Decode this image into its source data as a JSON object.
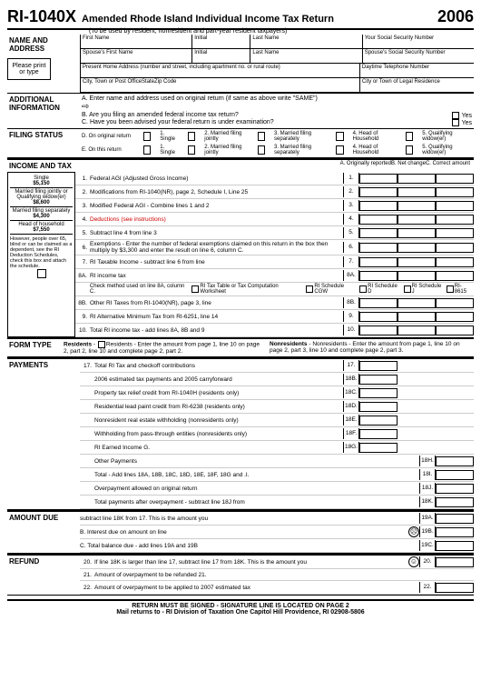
{
  "header": {
    "form_code": "RI-1040X",
    "title": "Amended Rhode Island Individual Income Tax Return",
    "year": "2006",
    "subtitle": "(To be used by resident, nonresident and part-year resident taxpayers)"
  },
  "name_address": {
    "label": "NAME AND ADDRESS",
    "please": "Please print or type",
    "first_name": "First Name",
    "initial": "Initial",
    "last_name": "Last Name",
    "ssn": "Your Social Security Number",
    "sp_first": "Spouse's First Name",
    "sp_ssn": "Spouse's Social Security Number",
    "address": "Present Home Address (number and street, including apartment no. or rural route)",
    "phone": "Daytime Telephone Number",
    "city": "City, Town or Post Office",
    "state": "State",
    "zip": "Zip Code",
    "residence": "City or Town of Legal Residence"
  },
  "additional": {
    "label": "ADDITIONAL INFORMATION",
    "a": "A. Enter name and address used on original return (if same as above write \"SAME\")",
    "b": "B. Are you filing an amended federal income tax return?",
    "c": "C. Have you been advised your federal return is under examination?",
    "yes": "Yes"
  },
  "filing": {
    "label": "FILING STATUS",
    "d": "D. On original return",
    "e": "E. On this return",
    "opts": [
      "1. Single",
      "2. Married filing jointly",
      "3. Married filing separately",
      "4. Head of Household",
      "5. Qualifying widow(er)"
    ]
  },
  "income": {
    "label": "INCOME AND TAX",
    "col_headers": "A. Originally reportedB. Net changeC. Correct amount",
    "deductions": [
      {
        "t": "Single",
        "a": "$5,150"
      },
      {
        "t": "Married filing jointly or Qualifying widow(er)",
        "a": "$8,600"
      },
      {
        "t": "Married filing separately",
        "a": "$4,300"
      },
      {
        "t": "Head of household",
        "a": "$7,550"
      }
    ],
    "ded_note": "However, people over 65, blind or can be claimed as a dependent, see the RI Deduction Schedules, check this box and attach the schedule.",
    "lines": [
      {
        "n": "1.",
        "t": "Federal AGI (Adjusted Gross Income)",
        "b": "1."
      },
      {
        "n": "2.",
        "t": "Modifications from RI-1040(NR), page 2, Schedule I, Line 25",
        "b": "2."
      },
      {
        "n": "3.",
        "t": "Modified Federal AGI - Combine lines 1 and 2",
        "b": "3."
      },
      {
        "n": "4.",
        "t": "Deductions (see instructions)",
        "b": "4.",
        "red": true
      },
      {
        "n": "5.",
        "t": "Subtract line 4 from line 3",
        "b": "5."
      },
      {
        "n": "6.",
        "t": "Exemptions - Enter the number of federal exemptions claimed on this return in the box then multiply by $3,300 and enter the result on line 6, column C.",
        "b": "6."
      },
      {
        "n": "7.",
        "t": "RI Taxable Income - subtract line 6 from line",
        "b": "7."
      },
      {
        "n": "8A.",
        "t": "RI income tax",
        "b": "8A."
      }
    ],
    "check_method": "Check method used on line 8A, column C.",
    "methods": [
      "RI Tax Table or Tax Computation Worksheet",
      "RI Schedule CGW",
      "RI Schedule D",
      "RI Schedule J",
      "RI-8615"
    ],
    "lines2": [
      {
        "n": "8B.",
        "t": "Other RI Taxes from RI-1040(NR), page 3, line",
        "b": "8B."
      },
      {
        "n": "9.",
        "t": "RI Alternative Minimum Tax from RI-6251, line 14",
        "b": "9."
      },
      {
        "n": "10.",
        "t": "Total RI income tax - add lines 8A, 8B and 9",
        "b": "10."
      }
    ]
  },
  "form_type": {
    "label": "FORM TYPE",
    "residents": "Residents - Enter the amount from page 1, line 10 on page 2, part 2, line 10 and complete page 2, part 2.",
    "nonresidents": "Nonresidents - Enter the amount from page 1, line 10 on page 2, part 3, line 10 and complete page 2, part 3."
  },
  "payments": {
    "label": "PAYMENTS",
    "lines": [
      {
        "n": "17.",
        "t": "Total RI Tax and checkoff contributions",
        "b": "17."
      },
      {
        "n": "",
        "t": "2006 estimated tax payments and 2005 carryforward",
        "b": "18B."
      },
      {
        "n": "",
        "t": "Property tax relief credit from RI-1040H (residents only)",
        "b": "18C."
      },
      {
        "n": "",
        "t": "Residential lead paint credit from RI-6238 (residents only)",
        "b": "18D."
      },
      {
        "n": "",
        "t": "Nonresident real estate withholding (nonresidents only)",
        "b": "18E."
      },
      {
        "n": "",
        "t": "Withholding from pass-through entities (nonresidents only)",
        "b": "18F."
      },
      {
        "n": "",
        "t": "RI Earned Income  G.",
        "b": "18G."
      },
      {
        "n": "",
        "t": "Other Payments",
        "b": "",
        "rb": "18H."
      },
      {
        "n": "",
        "t": "Total - Add lines 18A, 18B, 18C, 18D, 18E, 18F, 18G and .I.",
        "b": "",
        "rb": "18I."
      },
      {
        "n": "",
        "t": "Overpayment allowed on original return",
        "b": "",
        "rb": "18J."
      },
      {
        "n": "",
        "t": "Total payments after overpayment - subtract line 18J from",
        "b": "",
        "rb": "18K."
      }
    ]
  },
  "amount_due": {
    "label": "AMOUNT DUE",
    "lines": [
      {
        "t": "subtract line 18K from 17.  This is the amount you",
        "rb": "19A."
      },
      {
        "t": "B. Interest due on amount on line",
        "rb": "19B.",
        "face": "☹"
      },
      {
        "t": "C. Total balance due - add lines 19A and 19B",
        "rb": "19C."
      }
    ]
  },
  "refund": {
    "label": "REFUND",
    "lines": [
      {
        "n": "20.",
        "t": "If line 18K is larger than line 17, subtract line 17 from 18K.  This is the amount you",
        "rb": "20.",
        "face": "☺"
      },
      {
        "n": "21.",
        "t": "Amount of overpayment to be refunded  21.",
        "rb": ""
      },
      {
        "n": "22.",
        "t": "Amount of overpayment to be applied to 2007 estimated tax",
        "mb": "22.",
        "rb": ""
      }
    ]
  },
  "footer": {
    "l1": "RETURN MUST BE SIGNED - SIGNATURE LINE IS LOCATED ON PAGE 2",
    "l2": "Mail returns to - RI Division of Taxation  One Capitol Hill  Providence, RI 02908-5806"
  }
}
